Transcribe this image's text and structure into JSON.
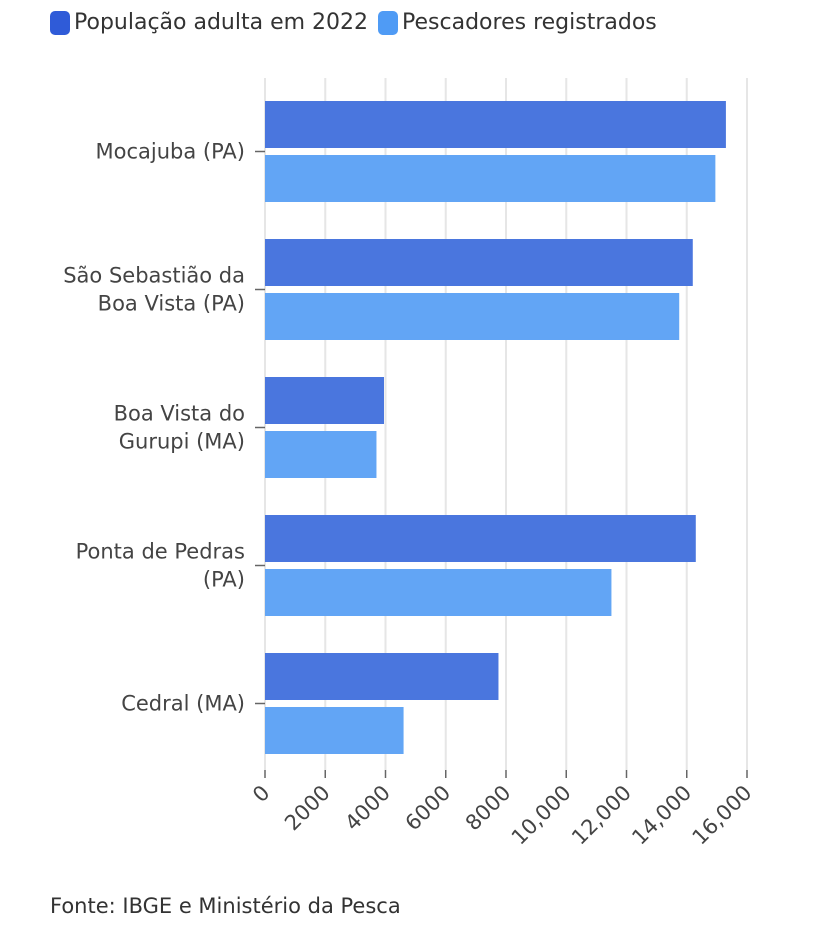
{
  "chart_data": {
    "type": "bar",
    "orientation": "horizontal",
    "categories": [
      [
        "Mocajuba (PA)"
      ],
      [
        "São Sebastião da",
        "Boa Vista (PA)"
      ],
      [
        "Boa Vista do",
        "Gurupi (MA)"
      ],
      [
        "Ponta de Pedras",
        "(PA)"
      ],
      [
        "Cedral (MA)"
      ]
    ],
    "series": [
      {
        "name": "População adulta em 2022",
        "color": "#4A76DE",
        "values": [
          15300,
          14200,
          3950,
          14300,
          7750
        ]
      },
      {
        "name": "Pescadores registrados",
        "color": "#62A5F5",
        "values": [
          14950,
          13750,
          3700,
          11500,
          4600
        ]
      }
    ],
    "xlim": [
      0,
      16000
    ],
    "ticks": [
      0,
      2000,
      4000,
      6000,
      8000,
      10000,
      12000,
      14000,
      16000
    ],
    "tick_labels": [
      "0",
      "2000",
      "4000",
      "6000",
      "8000",
      "10,000",
      "12,000",
      "14,000",
      "16,000"
    ],
    "grid": true,
    "legend": "top-left"
  },
  "source": "Fonte: IBGE e Ministério da Pesca"
}
